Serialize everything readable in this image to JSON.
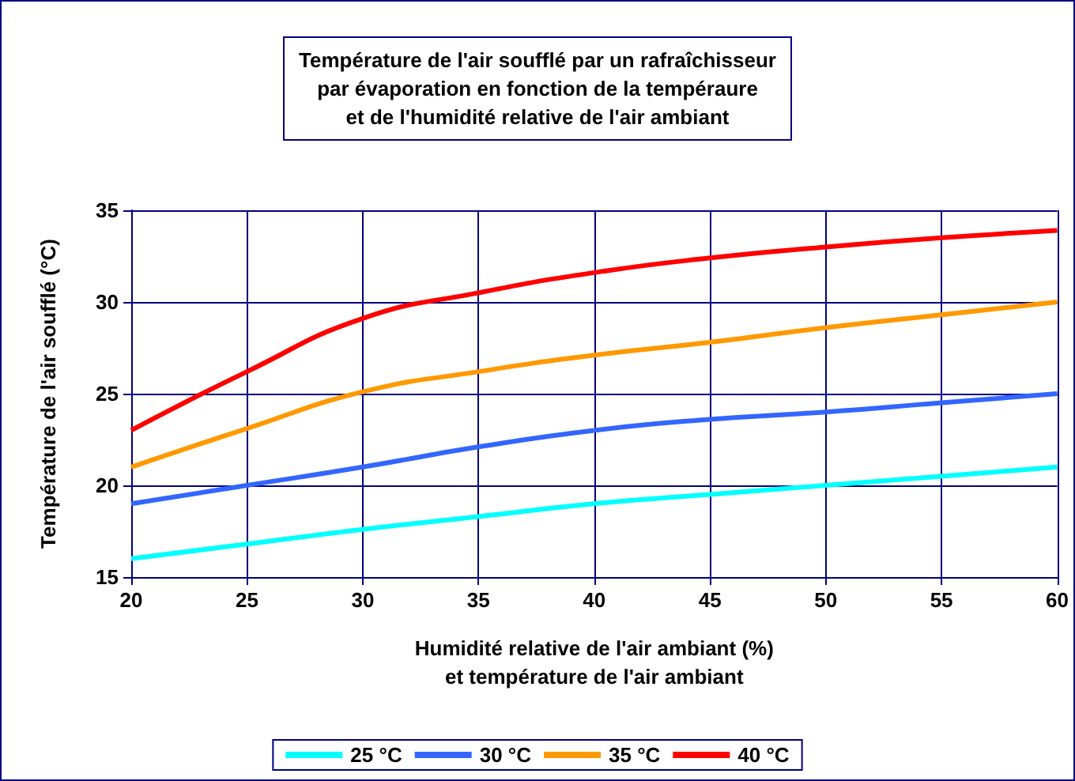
{
  "chart_data": {
    "type": "line",
    "title": "Température de l'air soufflé par un rafraîchisseur\npar évaporation en fonction de la tempéraure\net de l'humidité relative de l'air ambiant",
    "xlabel": "Humidité relative de l'air ambiant (%)\net température de l'air ambiant",
    "ylabel": "Température de l'air soufflé (°C)",
    "x": [
      20,
      25,
      30,
      35,
      40,
      45,
      50,
      55,
      60
    ],
    "series": [
      {
        "name": "25 °C",
        "color": "#00ffff",
        "values": [
          16,
          16.8,
          17.6,
          18.3,
          19,
          19.5,
          20,
          20.5,
          21
        ]
      },
      {
        "name": "30 °C",
        "color": "#3366ff",
        "values": [
          19,
          20,
          21,
          22.1,
          23,
          23.6,
          24,
          24.5,
          25
        ]
      },
      {
        "name": "35 °C",
        "color": "#ff9900",
        "values": [
          21,
          23.1,
          25.1,
          26.2,
          27.1,
          27.8,
          28.6,
          29.3,
          30
        ]
      },
      {
        "name": "40 °C",
        "color": "#ff0000",
        "values": [
          23,
          26.2,
          29.1,
          30.5,
          31.6,
          32.4,
          33,
          33.5,
          33.9
        ]
      }
    ],
    "xlim": [
      20,
      60
    ],
    "xticks": [
      20,
      25,
      30,
      35,
      40,
      45,
      50,
      55,
      60
    ],
    "ylim": [
      15,
      35
    ],
    "yticks": [
      15,
      20,
      25,
      30,
      35
    ],
    "grid": true,
    "legend": "bottom",
    "marker": "none",
    "line_style": "solid"
  }
}
